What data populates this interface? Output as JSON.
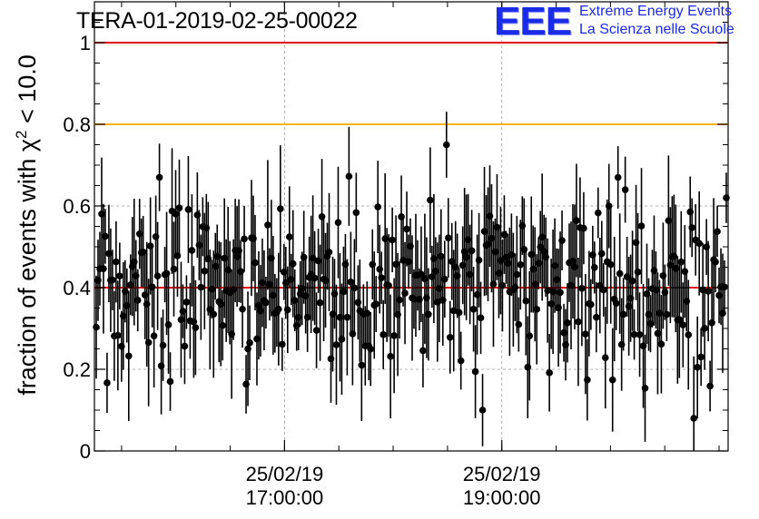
{
  "title": "TERA-01-2019-02-25-00022",
  "logo": {
    "mark": "EEE",
    "line1": "Extreme Energy Events",
    "line2": "La Scienza nelle Scuole",
    "color": "#1a2ce6"
  },
  "chart_data": {
    "type": "scatter",
    "title": "TERA-01-2019-02-25-00022",
    "ylabel": "fraction of events with χ² < 10.0",
    "ylim": [
      0,
      1.1
    ],
    "yticks": [
      0,
      0.2,
      0.4,
      0.6,
      0.8,
      1
    ],
    "ytick_labels": [
      "0",
      "0.2",
      "0.4",
      "0.6",
      "0.8",
      "1"
    ],
    "x_start": "2019-02-25 15:15:00",
    "x_end": "2019-02-25 21:05:00",
    "xticks": [
      {
        "time": "2019-02-25 17:00:00",
        "label_date": "25/02/19",
        "label_time": "17:00:00"
      },
      {
        "time": "2019-02-25 19:00:00",
        "label_date": "25/02/19",
        "label_time": "19:00:00"
      }
    ],
    "grid": true,
    "reference_lines": [
      {
        "y": 1.0,
        "color": "#e01010"
      },
      {
        "y": 0.8,
        "color": "#ffb000"
      },
      {
        "y": 0.4,
        "color": "#e01010"
      }
    ],
    "series": [
      {
        "marker_color": "#000000",
        "description_points": 350,
        "mean": 0.4,
        "highlights": [
          {
            "time": "2019-02-25 18:30:00",
            "y": 0.75
          },
          {
            "time": "2019-02-25 15:50:00",
            "y": 0.67
          },
          {
            "time": "2019-02-25 20:05:00",
            "y": 0.67
          },
          {
            "time": "2019-02-25 21:05:00",
            "y": 0.62
          },
          {
            "time": "2019-02-25 20:47:00",
            "y": 0.08
          },
          {
            "time": "2019-02-25 18:50:00",
            "y": 0.1
          }
        ]
      }
    ]
  }
}
